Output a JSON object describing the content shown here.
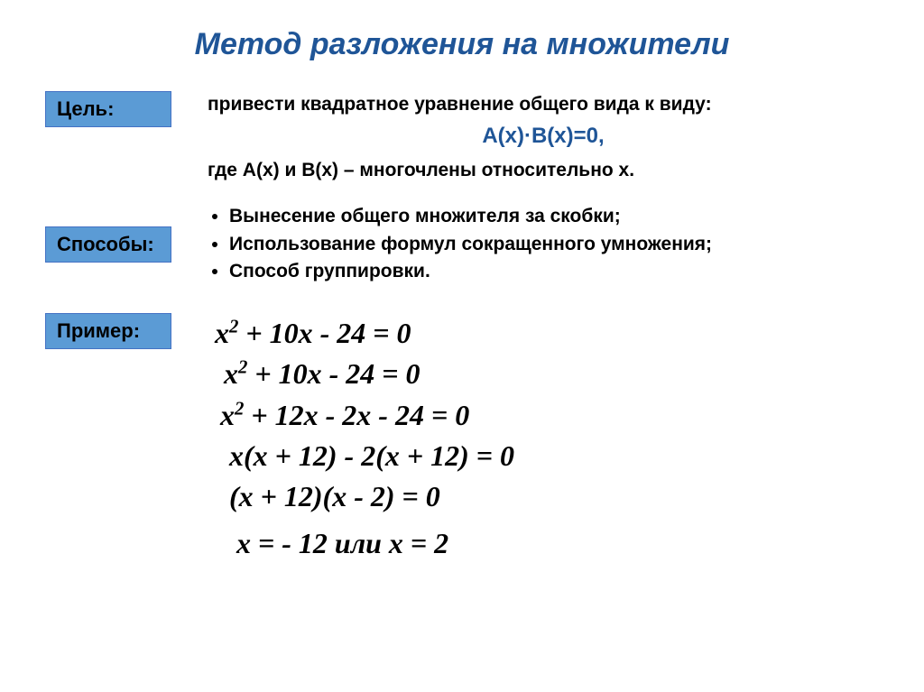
{
  "title": "Метод разложения на множители",
  "goal": {
    "label": "Цель:",
    "line1": "привести квадратное уравнение общего вида к виду:",
    "formula": "А(х)·В(х)=0,",
    "line2": "где А(х) и В(х) – многочлены относительно х."
  },
  "methods": {
    "label": "Способы:",
    "items": [
      "Вынесение общего множителя за скобки;",
      "Использование формул сокращенного умножения;",
      "Способ группировки."
    ]
  },
  "example": {
    "label": "Пример:",
    "equations": {
      "eq1_a": "x",
      "eq1_b": " + 10x - 24 = 0",
      "eq2_a": "x",
      "eq2_b": " + 10x - 24 = 0",
      "eq3_a": "x",
      "eq3_b": " + 12x - 2x - 24 = 0",
      "eq4": "x(x + 12) - 2(x + 12) = 0",
      "eq5": "(x + 12)(x - 2) = 0",
      "eq6": "x = - 12 или  x = 2"
    }
  },
  "colors": {
    "title_color": "#1f5597",
    "box_bg": "#5b9bd5",
    "box_border": "#4472c4",
    "text": "#000000",
    "formula": "#1f5597",
    "background": "#ffffff"
  }
}
